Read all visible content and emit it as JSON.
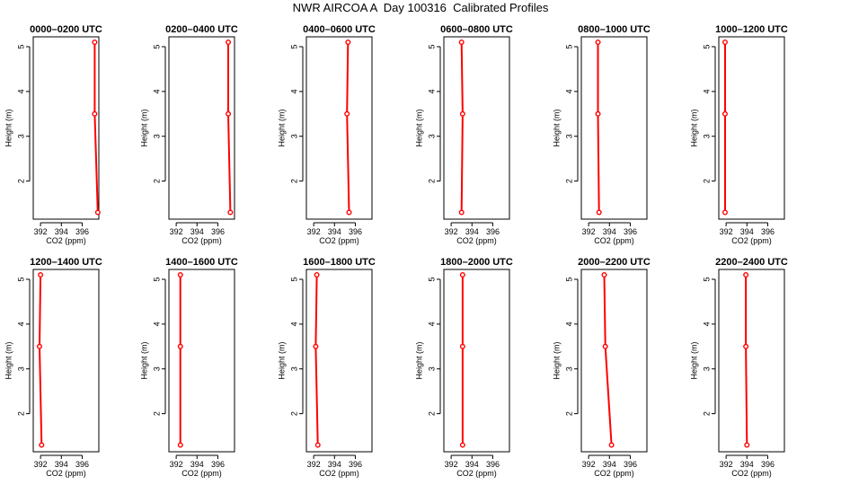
{
  "title": "NWR AIRCOA A  Day 100316  Calibrated Profiles",
  "chart_data": {
    "type": "line",
    "xlabel": "CO2 (ppm)",
    "ylabel": "Height (m)",
    "xlim": [
      391.3,
      397.6
    ],
    "ylim": [
      1.15,
      5.22
    ],
    "xticks": [
      392,
      394,
      396
    ],
    "yticks": [
      2,
      3,
      4,
      5
    ],
    "line_color": "#ff0000",
    "panels": [
      {
        "title": "0000–0200 UTC",
        "points": [
          {
            "x": 397.2,
            "y": 5.1
          },
          {
            "x": 397.2,
            "y": 3.5
          },
          {
            "x": 397.5,
            "y": 1.3
          }
        ]
      },
      {
        "title": "0200–0400 UTC",
        "points": [
          {
            "x": 397.0,
            "y": 5.1
          },
          {
            "x": 397.0,
            "y": 3.5
          },
          {
            "x": 397.2,
            "y": 1.3
          }
        ]
      },
      {
        "title": "0400–0600 UTC",
        "points": [
          {
            "x": 395.3,
            "y": 5.1
          },
          {
            "x": 395.2,
            "y": 3.5
          },
          {
            "x": 395.4,
            "y": 1.3
          }
        ]
      },
      {
        "title": "0600–0800 UTC",
        "points": [
          {
            "x": 393.0,
            "y": 5.1
          },
          {
            "x": 393.1,
            "y": 3.5
          },
          {
            "x": 393.0,
            "y": 1.3
          }
        ]
      },
      {
        "title": "0800–1000 UTC",
        "points": [
          {
            "x": 392.9,
            "y": 5.1
          },
          {
            "x": 392.9,
            "y": 3.5
          },
          {
            "x": 393.0,
            "y": 1.3
          }
        ]
      },
      {
        "title": "1000–1200 UTC",
        "points": [
          {
            "x": 391.9,
            "y": 5.1
          },
          {
            "x": 391.9,
            "y": 3.5
          },
          {
            "x": 391.9,
            "y": 1.3
          }
        ]
      },
      {
        "title": "1200–1400 UTC",
        "points": [
          {
            "x": 392.0,
            "y": 5.1
          },
          {
            "x": 391.9,
            "y": 3.5
          },
          {
            "x": 392.1,
            "y": 1.3
          }
        ]
      },
      {
        "title": "1400–1600 UTC",
        "points": [
          {
            "x": 392.4,
            "y": 5.1
          },
          {
            "x": 392.4,
            "y": 3.5
          },
          {
            "x": 392.4,
            "y": 1.3
          }
        ]
      },
      {
        "title": "1600–1800 UTC",
        "points": [
          {
            "x": 392.3,
            "y": 5.1
          },
          {
            "x": 392.2,
            "y": 3.5
          },
          {
            "x": 392.4,
            "y": 1.3
          }
        ]
      },
      {
        "title": "1800–2000 UTC",
        "points": [
          {
            "x": 393.1,
            "y": 5.1
          },
          {
            "x": 393.1,
            "y": 3.5
          },
          {
            "x": 393.1,
            "y": 1.3
          }
        ]
      },
      {
        "title": "2000–2200 UTC",
        "points": [
          {
            "x": 393.5,
            "y": 5.1
          },
          {
            "x": 393.6,
            "y": 3.5
          },
          {
            "x": 394.2,
            "y": 1.3
          }
        ]
      },
      {
        "title": "2200–2400 UTC",
        "points": [
          {
            "x": 393.9,
            "y": 5.1
          },
          {
            "x": 393.9,
            "y": 3.5
          },
          {
            "x": 394.0,
            "y": 1.3
          }
        ]
      }
    ]
  }
}
